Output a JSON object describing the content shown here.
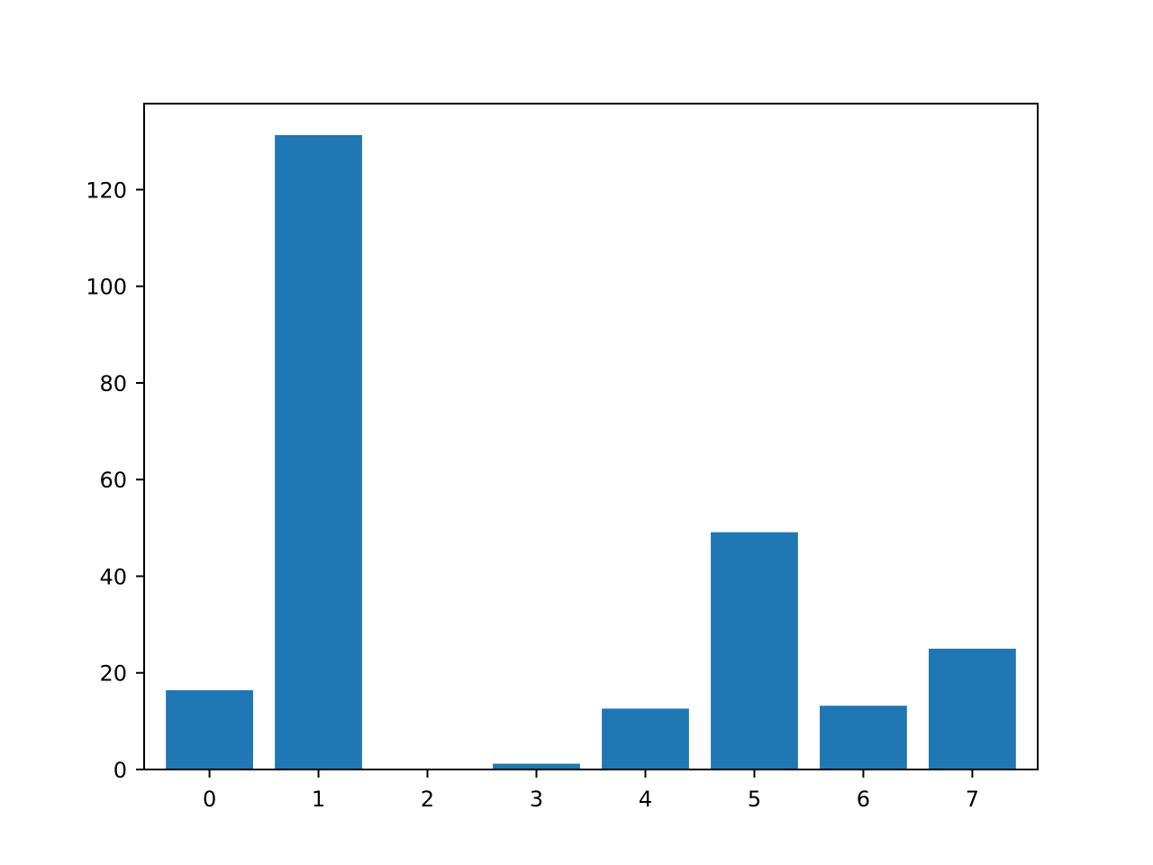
{
  "chart_data": {
    "type": "bar",
    "title": "",
    "xlabel": "",
    "ylabel": "",
    "categories": [
      "0",
      "1",
      "2",
      "3",
      "4",
      "5",
      "6",
      "7"
    ],
    "values": [
      16.4,
      131.3,
      0.1,
      1.2,
      12.6,
      49.1,
      13.2,
      25.0
    ],
    "ylim": [
      0,
      137.8
    ],
    "yticks": [
      0,
      20,
      40,
      60,
      80,
      100,
      120
    ],
    "ytick_labels": [
      "0",
      "20",
      "40",
      "60",
      "80",
      "100",
      "120"
    ],
    "bar_color": "#1f77b4",
    "grid": false,
    "legend": "none"
  }
}
